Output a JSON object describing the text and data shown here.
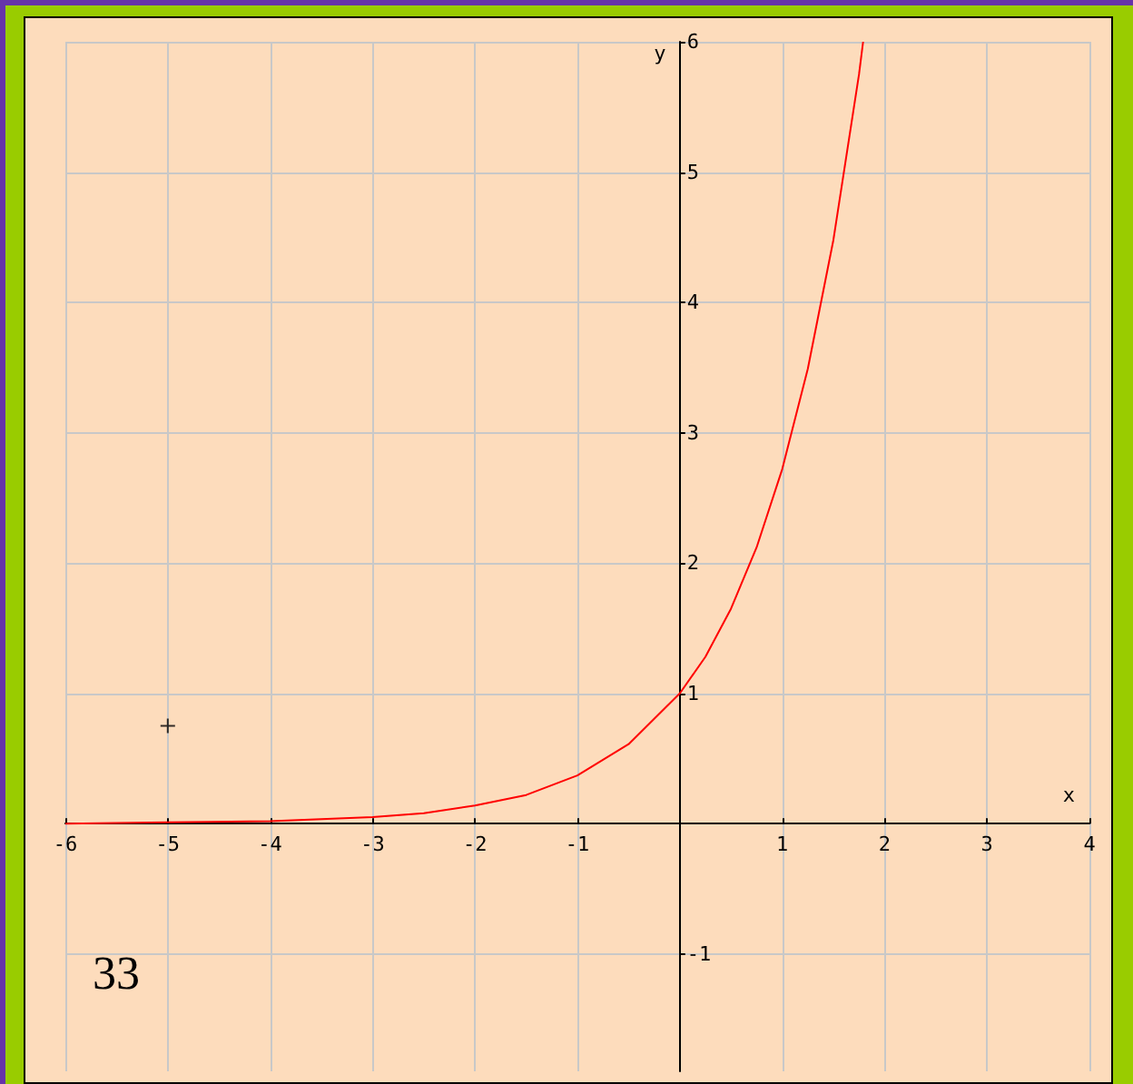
{
  "chart_data": {
    "type": "line",
    "xlabel": "x",
    "ylabel": "y",
    "xlim": [
      -6,
      4
    ],
    "xticks": [
      -6,
      -5,
      -4,
      -3,
      -2,
      -1,
      {
        "value": 0,
        "label": null
      },
      1,
      2,
      3,
      4
    ],
    "ylim": [
      -1.9,
      6
    ],
    "yticks": [
      -1,
      {
        "value": 0,
        "label": null
      },
      1,
      2,
      3,
      4,
      5,
      6
    ],
    "series": [
      {
        "color": "#ff0000",
        "marker": "none",
        "x": [
          -6,
          -5,
          -4,
          -3,
          -2.5,
          -2,
          -1.5,
          -1,
          -0.5,
          0,
          0.25,
          0.5,
          0.75,
          1,
          1.25,
          1.5,
          1.75,
          1.79
        ],
        "values": [
          0,
          0.01,
          0.02,
          0.05,
          0.08,
          0.14,
          0.22,
          0.37,
          0.61,
          1,
          1.28,
          1.65,
          2.12,
          2.72,
          3.49,
          4.48,
          5.75,
          6.0
        ]
      },
      {
        "type": "scatter",
        "color": "#000000",
        "marker": "cross",
        "x": [
          -5
        ],
        "values": [
          0.75
        ]
      }
    ],
    "grid": true,
    "annotations": [
      "33"
    ]
  }
}
